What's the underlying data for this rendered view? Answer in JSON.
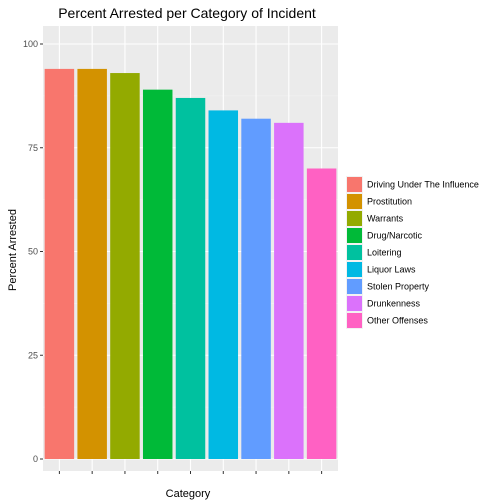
{
  "chart_data": {
    "type": "bar",
    "title": "Percent Arrested per Category of Incident",
    "xlabel": "Category",
    "ylabel": "Percent Arrested",
    "ylim": [
      0,
      100
    ],
    "yticks": [
      0,
      25,
      50,
      75,
      100
    ],
    "grid": true,
    "legend_position": "right",
    "categories": [
      "Driving Under The Influence",
      "Prostitution",
      "Warrants",
      "Drug/Narcotic",
      "Loitering",
      "Liquor Laws",
      "Stolen Property",
      "Drunkenness",
      "Other Offenses"
    ],
    "values": [
      94,
      94,
      93,
      89,
      87,
      84,
      82,
      81,
      70
    ],
    "colors": [
      "#F8766D",
      "#D39200",
      "#93AA00",
      "#00BA38",
      "#00C19F",
      "#00B9E3",
      "#619CFF",
      "#DB72FB",
      "#FF61C3"
    ]
  }
}
